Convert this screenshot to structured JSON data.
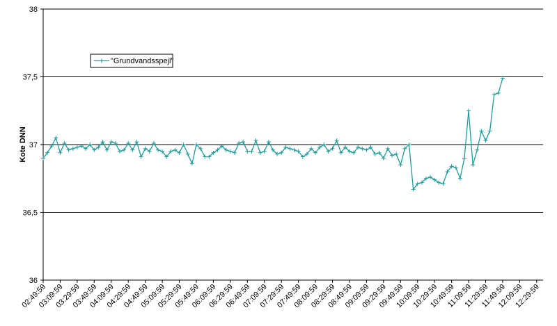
{
  "chart_data": {
    "type": "line",
    "y_label": "Kote DNN",
    "categories": [
      "02:49:59",
      null,
      null,
      null,
      "03:09:59",
      null,
      null,
      null,
      "03:29:59",
      null,
      null,
      null,
      "03:49:59",
      null,
      null,
      null,
      "04:09:59",
      null,
      null,
      null,
      "04:29:59",
      null,
      null,
      null,
      "04:49:59",
      null,
      null,
      null,
      "05:09:59",
      null,
      null,
      null,
      "05:29:59",
      null,
      null,
      null,
      "05:49:59",
      null,
      null,
      null,
      "06:09:59",
      null,
      null,
      null,
      "06:29:59",
      null,
      null,
      null,
      "06:49:59",
      null,
      null,
      null,
      "07:09:59",
      null,
      null,
      null,
      "07:29:59",
      null,
      null,
      null,
      "07:49:59",
      null,
      null,
      null,
      "08:09:59",
      null,
      null,
      null,
      "08:29:59",
      null,
      null,
      null,
      "08:49:59",
      null,
      null,
      null,
      "09:09:59",
      null,
      null,
      null,
      "09:29:59",
      null,
      null,
      null,
      "09:49:59",
      null,
      null,
      null,
      "10:09:59",
      null,
      null,
      null,
      "10:29:59",
      null,
      null,
      null,
      "10:49:59",
      null,
      null,
      null,
      "11:09:59",
      null,
      null,
      null,
      "11:29:59",
      null,
      null,
      null,
      "11:49:59",
      null,
      null,
      null,
      "12:09:59",
      null,
      null,
      null,
      "12:29:59"
    ],
    "series": [
      {
        "name": "\"Grundvandsspejl\"",
        "color": "#1f9a9a",
        "values": [
          36.9,
          36.94,
          36.99,
          37.05,
          36.94,
          37.01,
          36.96,
          36.97,
          36.98,
          36.99,
          36.97,
          37.0,
          36.96,
          36.98,
          37.02,
          36.96,
          37.02,
          37.01,
          36.95,
          36.96,
          37.01,
          36.96,
          37.02,
          36.91,
          36.97,
          36.95,
          37.01,
          36.96,
          36.95,
          36.91,
          36.95,
          36.96,
          36.94,
          37.0,
          36.93,
          36.86,
          37.0,
          36.97,
          36.91,
          36.91,
          36.94,
          36.96,
          36.99,
          36.96,
          36.95,
          36.94,
          37.01,
          37.02,
          36.95,
          36.95,
          37.03,
          36.94,
          36.95,
          37.02,
          36.96,
          36.93,
          36.94,
          36.98,
          36.97,
          36.96,
          36.95,
          36.91,
          36.93,
          36.97,
          36.94,
          36.98,
          37.0,
          36.95,
          36.97,
          37.03,
          36.94,
          36.98,
          36.95,
          36.94,
          36.98,
          36.97,
          36.96,
          36.98,
          36.93,
          36.94,
          36.9,
          36.97,
          36.92,
          36.93,
          36.85,
          36.97,
          37.0,
          36.67,
          36.71,
          36.72,
          36.75,
          36.76,
          36.74,
          36.72,
          36.71,
          36.8,
          36.84,
          36.83,
          36.75,
          36.9,
          37.25,
          36.85,
          36.96,
          37.1,
          37.03,
          37.1,
          37.37,
          37.38,
          37.49,
          null,
          null,
          null,
          null,
          null,
          null,
          null,
          null
        ]
      }
    ],
    "ylim": [
      36,
      38
    ],
    "yticks": [
      36,
      {
        "value": 36.5,
        "label": "36,5"
      },
      37,
      {
        "value": 37.5,
        "label": "37,5"
      },
      38
    ],
    "grid": true,
    "legend": "upper left"
  }
}
